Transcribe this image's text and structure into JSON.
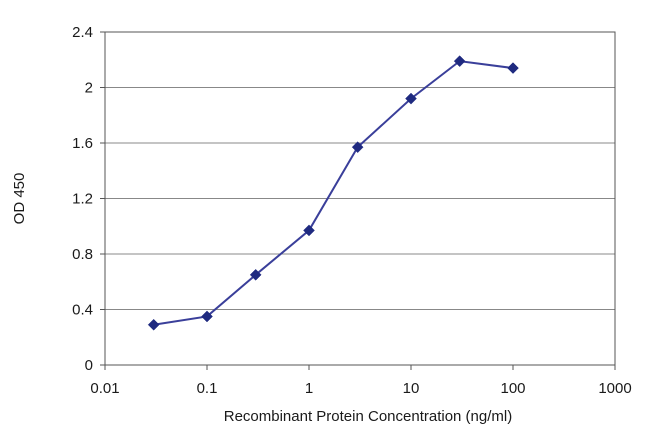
{
  "chart_data": {
    "type": "line",
    "title": "",
    "xlabel": "Recombinant Protein Concentration (ng/ml)",
    "ylabel": "OD 450",
    "x_scale": "log",
    "xlim": [
      0.01,
      1000
    ],
    "ylim": [
      0,
      2.4
    ],
    "x_ticks": [
      "0.01",
      "0.1",
      "1",
      "10",
      "100",
      "1000"
    ],
    "x_tick_values": [
      0.01,
      0.1,
      1,
      10,
      100,
      1000
    ],
    "y_ticks": [
      "0",
      "0.4",
      "0.8",
      "1.2",
      "1.6",
      "2",
      "2.4"
    ],
    "y_tick_values": [
      0,
      0.4,
      0.8,
      1.2,
      1.6,
      2,
      2.4
    ],
    "grid": "horizontal",
    "legend": "none",
    "series": [
      {
        "color": "#3a3f9a",
        "marker": "diamond",
        "x": [
          0.03,
          0.1,
          0.3,
          1,
          3,
          10,
          30,
          100
        ],
        "y": [
          0.29,
          0.35,
          0.65,
          0.97,
          1.57,
          1.92,
          2.19,
          2.14
        ]
      }
    ]
  }
}
